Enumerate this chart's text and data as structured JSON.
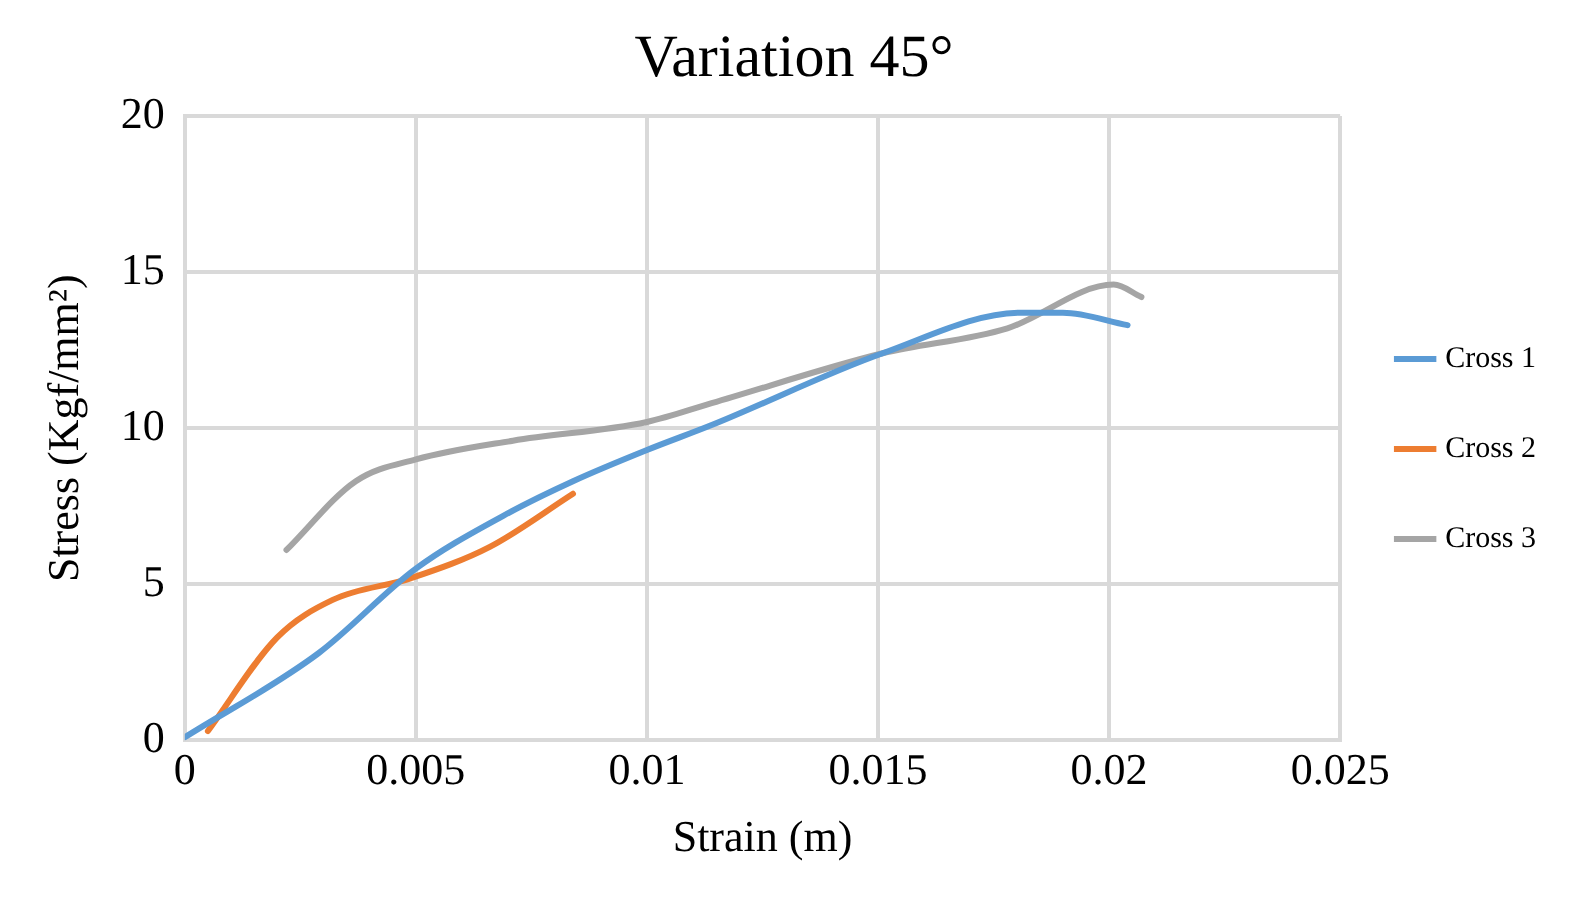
{
  "chart_data": {
    "type": "line",
    "title": "Variation 45°",
    "xlabel": "Strain (m)",
    "ylabel": "Stress (Kgf/mm²)",
    "xlim": [
      0,
      0.025
    ],
    "xticks": [
      0,
      0.005,
      0.01,
      0.015,
      0.02,
      0.025
    ],
    "ylim": [
      0,
      20
    ],
    "yticks": [
      0,
      5,
      10,
      15,
      20
    ],
    "grid": true,
    "legend": "right",
    "marker": "none",
    "series": [
      {
        "name": "Cross 1",
        "color": "#5b9bd5",
        "x": [
          0,
          0.0029,
          0.005,
          0.0069,
          0.0084,
          0.01,
          0.0114,
          0.0151,
          0.0181,
          0.019,
          0.0204
        ],
        "values": [
          0.1,
          2.8,
          5.5,
          7.2,
          8.3,
          9.3,
          10.1,
          12.4,
          13.7,
          13.7,
          13.3
        ]
      },
      {
        "name": "Cross 2",
        "color": "#ed7d31",
        "x": [
          0.0005,
          0.002,
          0.0032,
          0.0049,
          0.0066,
          0.0084
        ],
        "values": [
          0.3,
          3.3,
          4.5,
          5.2,
          6.2,
          7.9
        ]
      },
      {
        "name": "Cross 3",
        "color": "#a5a5a5",
        "x": [
          0.0022,
          0.0037,
          0.005,
          0.0071,
          0.01,
          0.0114,
          0.0151,
          0.0178,
          0.0201,
          0.0207
        ],
        "values": [
          6.1,
          8.3,
          9,
          9.6,
          10.2,
          10.8,
          12.4,
          13.2,
          14.6,
          14.2
        ]
      }
    ]
  }
}
